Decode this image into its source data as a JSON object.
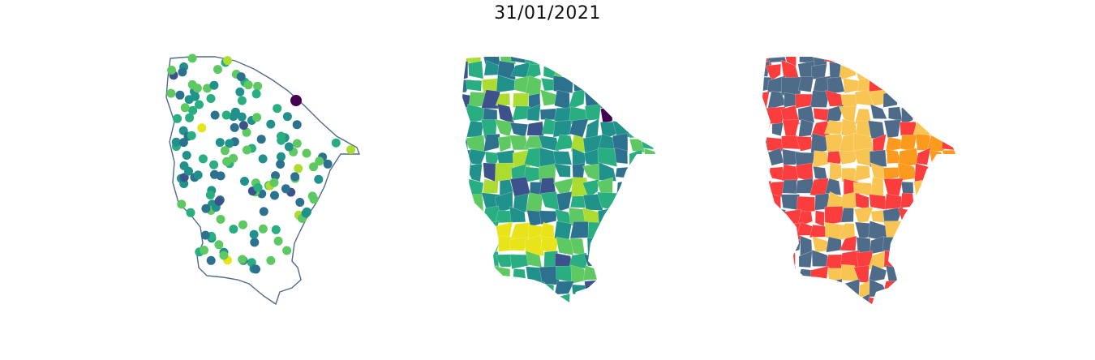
{
  "figure": {
    "title": "31/01/2021"
  },
  "panels": [
    {
      "id": "dots",
      "kind": "station-points",
      "outline_color": "#4f6b8a"
    },
    {
      "id": "choro-viridis",
      "kind": "municipality-choropleth",
      "colormap": "viridis"
    },
    {
      "id": "choro-category",
      "kind": "municipality-category-map",
      "category_colors": [
        "#4f6b8a",
        "#fc3d3d",
        "#f9c552",
        "#fb9a1d"
      ]
    }
  ],
  "palette": {
    "viridis": [
      "#440154",
      "#3b528b",
      "#2c728e",
      "#21918c",
      "#28ae80",
      "#5ec962",
      "#addc30",
      "#e8e419"
    ]
  }
}
